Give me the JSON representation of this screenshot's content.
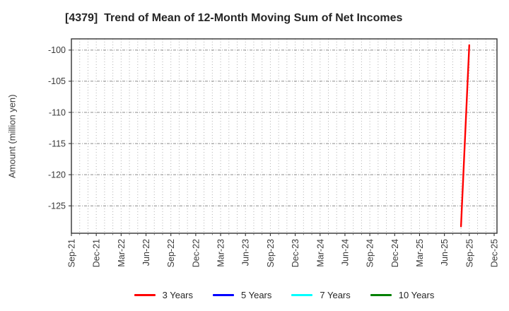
{
  "header": {
    "title": "[4379]  Trend of Mean of 12-Month Moving Sum of Net Incomes"
  },
  "chart_data": {
    "type": "line",
    "title": "[4379]  Trend of Mean of 12-Month Moving Sum of Net Incomes",
    "xlabel": "",
    "ylabel": "Amount (million yen)",
    "x_tick_labels": [
      "Sep-21",
      "Dec-21",
      "Mar-22",
      "Jun-22",
      "Sep-22",
      "Dec-22",
      "Mar-23",
      "Jun-23",
      "Sep-23",
      "Dec-23",
      "Mar-24",
      "Jun-24",
      "Sep-24",
      "Dec-24",
      "Mar-25",
      "Jun-25",
      "Sep-25",
      "Dec-25"
    ],
    "months_per_tick": 3,
    "y_ticks": [
      -100,
      -105,
      -110,
      -115,
      -120,
      -125
    ],
    "ylim": [
      -129.4,
      -98.2
    ],
    "grid": {
      "vertical": "monthly, dotted light gray",
      "horizontal": "major ticks, gray dash-dot"
    },
    "legend_position": "bottom",
    "axis_color": "#333333",
    "tick_label_color": "#3a3a3a",
    "series": [
      {
        "name": "3 Years",
        "color": "#ff0000",
        "data": [
          {
            "x_label": "Aug-25",
            "x_month_index": 47,
            "y": -128.3
          },
          {
            "x_label": "Sep-25",
            "x_month_index": 48,
            "y": -99.2
          }
        ]
      },
      {
        "name": "5 Years",
        "color": "#0000ff",
        "data": []
      },
      {
        "name": "7 Years",
        "color": "#00ffff",
        "data": []
      },
      {
        "name": "10 Years",
        "color": "#008000",
        "data": []
      }
    ]
  }
}
